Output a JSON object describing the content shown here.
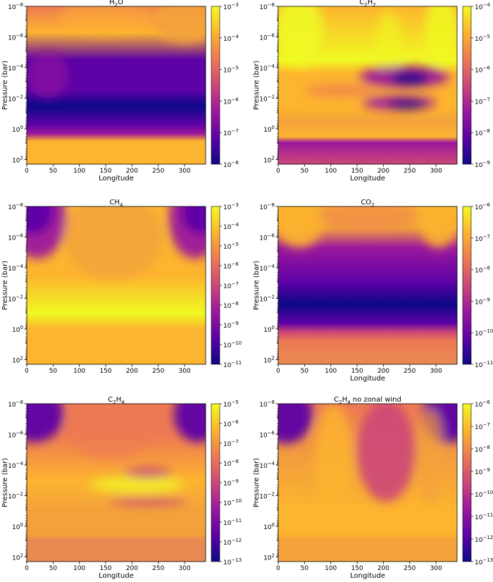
{
  "panels": [
    {
      "title_base": "H",
      "title_sub": "2",
      "title_rest": "O"
    },
    {
      "title_base": "C",
      "title_sub": "2",
      "title_rest": "H",
      "title_sub2": "2"
    },
    {
      "title_base": "CH",
      "title_sub": "4",
      "title_rest": ""
    },
    {
      "title_base": "CO",
      "title_sub": "2",
      "title_rest": ""
    },
    {
      "title_base": "C",
      "title_sub": "2",
      "title_rest": "H",
      "title_sub2": "4"
    },
    {
      "title_base": "C",
      "title_sub": "2",
      "title_rest": "H",
      "title_sub2": "4",
      "title_suffix": " no zonal wind"
    }
  ],
  "chart_data": [
    {
      "type": "heatmap",
      "title": "H2O",
      "xlabel": "Longitude",
      "ylabel": "Pressure (bar)",
      "xticks": [
        0,
        50,
        100,
        150,
        200,
        250,
        300
      ],
      "xlim": [
        0,
        340
      ],
      "yticks": [
        "10^-8",
        "10^-6",
        "10^-4",
        "10^-2",
        "10^0",
        "10^2"
      ],
      "ylim": [
        1e-08,
        200
      ],
      "yscale": "log",
      "yinverted": true,
      "colormap": "plasma",
      "colorbar_ticks": [
        "10^-3",
        "10^-4",
        "10^-5",
        "10^-6",
        "10^-7",
        "10^-8"
      ],
      "colorbar_range": [
        1e-08,
        0.001
      ]
    },
    {
      "type": "heatmap",
      "title": "C2H2",
      "xlabel": "Longitude",
      "ylabel": "Pressure (bar)",
      "xticks": [
        0,
        50,
        100,
        150,
        200,
        250,
        300
      ],
      "xlim": [
        0,
        340
      ],
      "yticks": [
        "10^-8",
        "10^-6",
        "10^-4",
        "10^-2",
        "10^0",
        "10^2"
      ],
      "ylim": [
        1e-08,
        200
      ],
      "yscale": "log",
      "yinverted": true,
      "colormap": "plasma",
      "colorbar_ticks": [
        "10^-4",
        "10^-5",
        "10^-6",
        "10^-7",
        "10^-8",
        "10^-9"
      ],
      "colorbar_range": [
        1e-09,
        0.0001
      ]
    },
    {
      "type": "heatmap",
      "title": "CH4",
      "xlabel": "",
      "ylabel": "Pressure (bar)",
      "xticks": [
        0,
        50,
        100,
        150,
        200,
        250,
        300
      ],
      "xlim": [
        0,
        340
      ],
      "yticks": [
        "10^-8",
        "10^-6",
        "10^-4",
        "10^-2",
        "10^0",
        "10^2"
      ],
      "ylim": [
        1e-08,
        200
      ],
      "yscale": "log",
      "yinverted": true,
      "colormap": "plasma",
      "colorbar_ticks": [
        "10^-3",
        "10^-4",
        "10^-5",
        "10^-6",
        "10^-7",
        "10^-8",
        "10^-9",
        "10^-10",
        "10^-11"
      ],
      "colorbar_range": [
        1e-11,
        0.001
      ]
    },
    {
      "type": "heatmap",
      "title": "CO2",
      "xlabel": "Longitude",
      "ylabel": "Pressure (bar)",
      "xticks": [
        0,
        50,
        100,
        150,
        200,
        250,
        300
      ],
      "xlim": [
        0,
        340
      ],
      "yticks": [
        "10^-8",
        "10^-6",
        "10^-4",
        "10^-2",
        "10^0",
        "10^2"
      ],
      "ylim": [
        1e-08,
        200
      ],
      "yscale": "log",
      "yinverted": true,
      "colormap": "plasma",
      "colorbar_ticks": [
        "10^-6",
        "10^-7",
        "10^-8",
        "10^-9",
        "10^-10",
        "10^-11"
      ],
      "colorbar_range": [
        1e-11,
        1e-06
      ]
    },
    {
      "type": "heatmap",
      "title": "C2H4",
      "xlabel": "Longitude",
      "ylabel": "Pressure (bar)",
      "xticks": [
        0,
        50,
        100,
        150,
        200,
        250,
        300
      ],
      "xlim": [
        0,
        340
      ],
      "yticks": [
        "10^-8",
        "10^-6",
        "10^-4",
        "10^-2",
        "10^0",
        "10^2"
      ],
      "ylim": [
        1e-08,
        200
      ],
      "yscale": "log",
      "yinverted": true,
      "colormap": "plasma",
      "colorbar_ticks": [
        "10^-5",
        "10^-6",
        "10^-7",
        "10^-8",
        "10^-9",
        "10^-10",
        "10^-11",
        "10^-12",
        "10^-13"
      ],
      "colorbar_range": [
        1e-13,
        1e-05
      ]
    },
    {
      "type": "heatmap",
      "title": "C2H4 no zonal wind",
      "xlabel": "Longitude",
      "ylabel": "Pressure (bar)",
      "xticks": [
        0,
        50,
        100,
        150,
        200,
        250,
        300
      ],
      "xlim": [
        0,
        340
      ],
      "yticks": [
        "10^-8",
        "10^-6",
        "10^-4",
        "10^-2",
        "10^0",
        "10^2"
      ],
      "ylim": [
        1e-08,
        200
      ],
      "yscale": "log",
      "yinverted": true,
      "colormap": "plasma",
      "colorbar_ticks": [
        "10^-6",
        "10^-7",
        "10^-8",
        "10^-9",
        "10^-10",
        "10^-11",
        "10^-12",
        "10^-13"
      ],
      "colorbar_range": [
        1e-13,
        1e-06
      ]
    }
  ],
  "colormap_stops": [
    "#0d0887",
    "#5c01a6",
    "#9c179e",
    "#cc4778",
    "#ed7953",
    "#fdb42f",
    "#f0f921"
  ]
}
